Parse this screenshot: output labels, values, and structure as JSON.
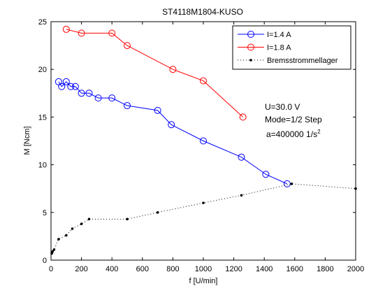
{
  "chart_data": {
    "type": "line",
    "title": "ST4118M1804-KUSO",
    "xlabel": "f [U/min]",
    "ylabel": "M [Ncm]",
    "xlim": [
      0,
      2000
    ],
    "ylim": [
      0,
      25
    ],
    "xticks": [
      0,
      200,
      400,
      600,
      800,
      1000,
      1200,
      1400,
      1600,
      1800,
      2000
    ],
    "yticks": [
      0,
      5,
      10,
      15,
      20,
      25
    ],
    "grid": false,
    "legend_position": "top-right",
    "series": [
      {
        "name": "I=1.4 A",
        "color": "#0000ff",
        "line": "solid",
        "marker": "circle",
        "x": [
          50,
          70,
          100,
          130,
          160,
          200,
          250,
          310,
          400,
          500,
          700,
          790,
          1000,
          1250,
          1410,
          1550
        ],
        "y": [
          18.7,
          18.2,
          18.7,
          18.2,
          18.2,
          17.5,
          17.5,
          17.0,
          17.0,
          16.2,
          15.7,
          14.2,
          12.5,
          10.8,
          9.0,
          8.0
        ]
      },
      {
        "name": "I=1.8 A",
        "color": "#ff0000",
        "line": "solid",
        "marker": "circle",
        "x": [
          100,
          200,
          400,
          500,
          800,
          1000,
          1260
        ],
        "y": [
          24.2,
          23.8,
          23.8,
          22.5,
          20.0,
          18.8,
          15.0
        ]
      },
      {
        "name": "Bremsstrommellager",
        "color": "#000000",
        "line": "dotted",
        "marker": "dot",
        "x": [
          5,
          10,
          20,
          50,
          100,
          140,
          200,
          250,
          500,
          700,
          1000,
          1250,
          1580,
          2000
        ],
        "y": [
          0.7,
          0.9,
          1.1,
          2.2,
          2.6,
          3.3,
          3.8,
          4.3,
          4.3,
          5.0,
          6.0,
          6.8,
          8.0,
          7.5
        ]
      }
    ],
    "annotation": {
      "line1": "U=30.0 V",
      "line2": "Mode=1/2 Step",
      "line3_base": "a=400000 1/s",
      "line3_sup": "2"
    }
  }
}
